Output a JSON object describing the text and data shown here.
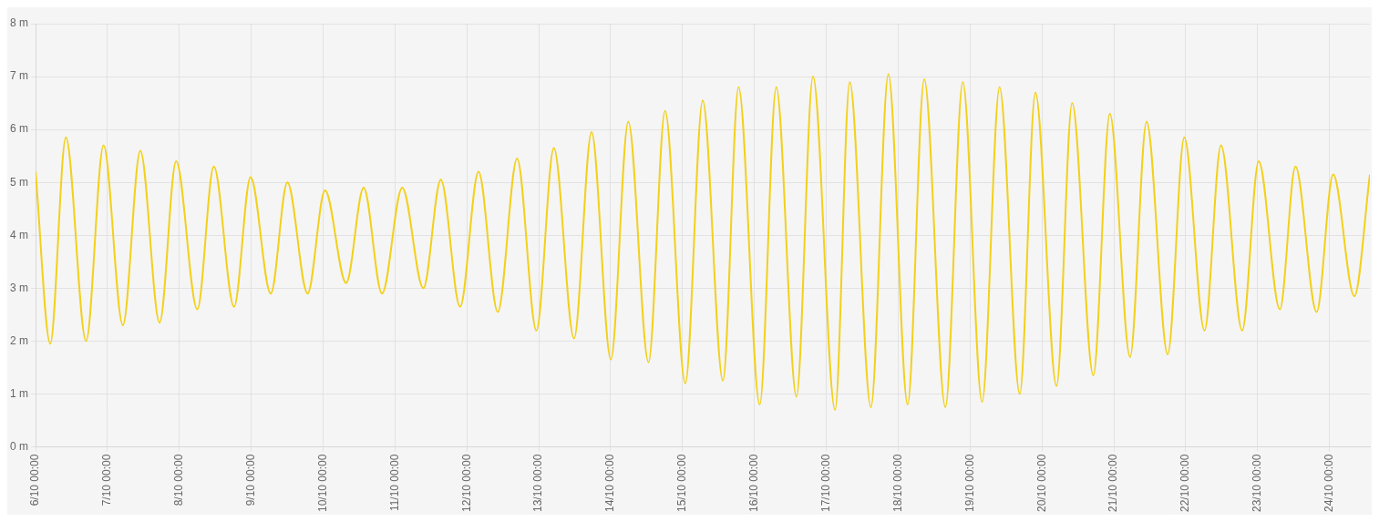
{
  "chart_data": {
    "type": "line",
    "x": [
      "--10-06T00:00",
      "--10-06T04:55",
      "--10-06T10:07",
      "--10-06T16:52",
      "--10-06T22:42",
      "--10-07T05:09",
      "--10-07T10:59",
      "--10-07T17:25",
      "--10-07T22:56",
      "--10-08T06:00",
      "--10-08T11:31",
      "--10-08T18:16",
      "--10-08T23:47",
      "--10-09T06:32",
      "--10-09T12:04",
      "--10-09T18:49",
      "--10-10T00:38",
      "--10-10T07:42",
      "--10-10T13:32",
      "--10-10T19:40",
      "--10-11T02:25",
      "--10-11T09:28",
      "--10-11T15:18",
      "--10-11T21:44",
      "--10-12T03:53",
      "--10-12T10:19",
      "--10-12T16:46",
      "--10-12T23:13",
      "--10-13T05:02",
      "--10-13T11:47",
      "--10-13T17:37",
      "--10-14T00:04",
      "--10-14T05:53",
      "--10-14T12:38",
      "--10-14T18:10",
      "--10-15T00:55",
      "--10-15T06:44",
      "--10-15T13:29",
      "--10-15T18:42",
      "--10-16T01:46",
      "--10-16T07:17",
      "--10-16T14:02",
      "--10-16T19:33",
      "--10-17T02:55",
      "--10-17T07:49",
      "--10-17T14:53",
      "--10-17T20:43",
      "--10-18T03:09",
      "--10-18T08:41",
      "--10-18T15:44",
      "--10-18T21:34",
      "--10-19T04:00",
      "--10-19T09:50",
      "--10-19T16:35",
      "--10-19T21:48",
      "--10-20T04:51",
      "--10-20T10:04",
      "--10-20T17:08",
      "--10-20T22:39",
      "--10-21T05:24",
      "--10-21T10:55",
      "--10-21T17:59",
      "--10-21T23:30",
      "--10-22T06:15",
      "--10-22T11:46",
      "--10-22T18:50",
      "--10-23T00:21",
      "--10-23T07:25",
      "--10-23T12:37",
      "--10-23T19:41",
      "--10-24T01:12",
      "--10-24T08:16",
      "--10-24T13:28"
    ],
    "series": [
      {
        "color": "#f2d01c",
        "values": [
          5.2,
          1.95,
          5.85,
          2.0,
          5.7,
          2.3,
          5.6,
          2.35,
          5.4,
          2.6,
          5.3,
          2.65,
          5.1,
          2.9,
          5.0,
          2.9,
          4.85,
          3.1,
          4.9,
          2.9,
          4.9,
          3.0,
          5.05,
          2.65,
          5.2,
          2.55,
          5.45,
          2.2,
          5.65,
          2.05,
          5.95,
          1.65,
          6.15,
          1.6,
          6.35,
          1.2,
          6.55,
          1.25,
          6.8,
          0.8,
          6.8,
          0.95,
          7.0,
          0.7,
          6.9,
          0.75,
          7.05,
          0.8,
          6.95,
          0.75,
          6.9,
          0.85,
          6.8,
          1.0,
          6.7,
          1.15,
          6.5,
          1.35,
          6.3,
          1.7,
          6.15,
          1.75,
          5.85,
          2.2,
          5.7,
          2.2,
          5.4,
          2.6,
          5.3,
          2.55,
          5.15,
          2.85,
          5.15
        ]
      }
    ],
    "xlim": [
      "--10-06T00:00",
      "--10-24T13:28"
    ],
    "xticks": [
      {
        "value": "--10-06T00:00",
        "label": "6/10 00:00"
      },
      {
        "value": "--10-07T00:00",
        "label": "7/10 00:00"
      },
      {
        "value": "--10-08T00:00",
        "label": "8/10 00:00"
      },
      {
        "value": "--10-09T00:00",
        "label": "9/10 00:00"
      },
      {
        "value": "--10-10T00:00",
        "label": "10/10 00:00"
      },
      {
        "value": "--10-11T00:00",
        "label": "11/10 00:00"
      },
      {
        "value": "--10-12T00:00",
        "label": "12/10 00:00"
      },
      {
        "value": "--10-13T00:00",
        "label": "13/10 00:00"
      },
      {
        "value": "--10-14T00:00",
        "label": "14/10 00:00"
      },
      {
        "value": "--10-15T00:00",
        "label": "15/10 00:00"
      },
      {
        "value": "--10-16T00:00",
        "label": "16/10 00:00"
      },
      {
        "value": "--10-17T00:00",
        "label": "17/10 00:00"
      },
      {
        "value": "--10-18T00:00",
        "label": "18/10 00:00"
      },
      {
        "value": "--10-19T00:00",
        "label": "19/10 00:00"
      },
      {
        "value": "--10-20T00:00",
        "label": "20/10 00:00"
      },
      {
        "value": "--10-21T00:00",
        "label": "21/10 00:00"
      },
      {
        "value": "--10-22T00:00",
        "label": "22/10 00:00"
      },
      {
        "value": "--10-23T00:00",
        "label": "23/10 00:00"
      },
      {
        "value": "--10-24T00:00",
        "label": "24/10 00:00"
      }
    ],
    "ylim": [
      0,
      8
    ],
    "yticks": [
      {
        "value": 0,
        "label": "0 m"
      },
      {
        "value": 1,
        "label": "1 m"
      },
      {
        "value": 2,
        "label": "2 m"
      },
      {
        "value": 3,
        "label": "3 m"
      },
      {
        "value": 4,
        "label": "4 m"
      },
      {
        "value": 5,
        "label": "5 m"
      },
      {
        "value": 6,
        "label": "6 m"
      },
      {
        "value": 7,
        "label": "7 m"
      },
      {
        "value": 8,
        "label": "8 m"
      }
    ],
    "grid": true,
    "legend": false,
    "marker": "none",
    "line_style": "solid"
  }
}
